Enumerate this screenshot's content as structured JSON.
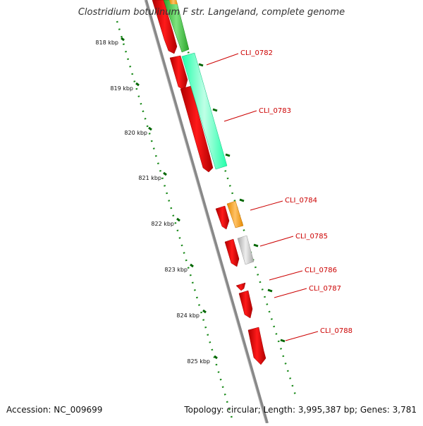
{
  "map": {
    "title": "Clostridium botulinum F str. Langeland, complete genome",
    "accession": "Accession: NC_009699",
    "topology": "Topology: circular; Length: 3,995,387 bp; Genes: 3,781"
  },
  "ruler": {
    "unit": "kbp",
    "ticks": [
      {
        "label": "818 kbp",
        "kbp": 818
      },
      {
        "label": "819 kbp",
        "kbp": 819
      },
      {
        "label": "820 kbp",
        "kbp": 820
      },
      {
        "label": "821 kbp",
        "kbp": 821
      },
      {
        "label": "822 kbp",
        "kbp": 822
      },
      {
        "label": "823 kbp",
        "kbp": 823
      },
      {
        "label": "824 kbp",
        "kbp": 824
      },
      {
        "label": "825 kbp",
        "kbp": 825
      }
    ]
  },
  "genes": [
    {
      "label": "CLI_0782"
    },
    {
      "label": "CLI_0783"
    },
    {
      "label": "CLI_0784"
    },
    {
      "label": "CLI_0785"
    },
    {
      "label": "CLI_0786"
    },
    {
      "label": "CLI_0787"
    },
    {
      "label": "CLI_0788"
    }
  ],
  "colors": {
    "gene_red": "#ff0000",
    "cog_green": "#33cc33",
    "cog_teal": "#22ffaa",
    "cog_orange": "#ff9900",
    "cog_grey": "#c0c0c0",
    "label_red": "#cc0000",
    "tick_green": "#006600",
    "backbone": "#888888"
  }
}
